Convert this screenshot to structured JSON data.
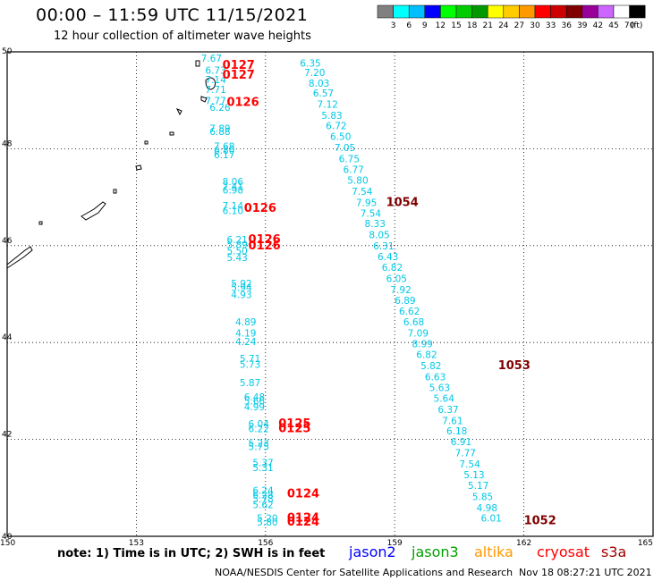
{
  "header": {
    "title": "00:00 – 11:59 UTC 11/15/2021",
    "subtitle": "12 hour collection of altimeter wave heights"
  },
  "footer": {
    "note": "note: 1) Time is in UTC; 2) SWH is in feet",
    "missions": [
      {
        "name": "jason2",
        "color": "#0000ff"
      },
      {
        "name": "jason3",
        "color": "#00a000"
      },
      {
        "name": "altika",
        "color": "#ff9900"
      },
      {
        "name": "cryosat",
        "color": "#ff0000"
      },
      {
        "name": "s3a",
        "color": "#a00000"
      }
    ],
    "credit": "NOAA/NESDIS Center for Satellite Applications and Research",
    "timestamp": "Nov 18 08:27:21 UTC 2021"
  },
  "chart_data": {
    "type": "scatter",
    "xlim": [
      150,
      165
    ],
    "ylim": [
      40,
      50
    ],
    "x_ticks": [
      "150",
      "153",
      "156",
      "159",
      "162",
      "165"
    ],
    "y_ticks": [
      "50",
      "48",
      "46",
      "44",
      "42",
      "40"
    ],
    "grid": true,
    "colorbar": {
      "unit": "(ft)",
      "labels": [
        "3",
        "6",
        "9",
        "12",
        "15",
        "18",
        "21",
        "24",
        "27",
        "30",
        "33",
        "36",
        "39",
        "42",
        "45",
        "70"
      ],
      "colors": [
        "#808080",
        "#00ffff",
        "#00bfff",
        "#0000ff",
        "#00ff00",
        "#00cc00",
        "#009900",
        "#ffff00",
        "#ffcc00",
        "#ff9900",
        "#ff0000",
        "#cc0000",
        "#800000",
        "#990099",
        "#cc66ff",
        "#ffffff",
        "#000000"
      ]
    },
    "series": [
      {
        "color": "#00c8e6",
        "points": [
          {
            "x": 154.5,
            "y": 49.8,
            "v": "7.67"
          },
          {
            "x": 154.6,
            "y": 49.55,
            "v": "6.73"
          },
          {
            "x": 154.6,
            "y": 49.35,
            "v": "7.14"
          },
          {
            "x": 154.6,
            "y": 49.15,
            "v": "7.71"
          },
          {
            "x": 154.6,
            "y": 48.92,
            "v": "7.77"
          },
          {
            "x": 154.7,
            "y": 48.78,
            "v": "6.26"
          },
          {
            "x": 154.7,
            "y": 48.35,
            "v": "7.89"
          },
          {
            "x": 154.7,
            "y": 48.28,
            "v": "6.88"
          },
          {
            "x": 154.8,
            "y": 47.98,
            "v": "7.68"
          },
          {
            "x": 154.8,
            "y": 47.9,
            "v": "6.80"
          },
          {
            "x": 154.8,
            "y": 47.8,
            "v": "6.17"
          },
          {
            "x": 155.0,
            "y": 47.25,
            "v": "8.06"
          },
          {
            "x": 155.0,
            "y": 47.15,
            "v": "7.41"
          },
          {
            "x": 155.0,
            "y": 47.08,
            "v": "6.98"
          },
          {
            "x": 155.0,
            "y": 46.75,
            "v": "7.14"
          },
          {
            "x": 155.0,
            "y": 46.65,
            "v": "6.10"
          },
          {
            "x": 155.1,
            "y": 46.05,
            "v": "6.21"
          },
          {
            "x": 155.1,
            "y": 45.95,
            "v": "5.89"
          },
          {
            "x": 155.1,
            "y": 45.82,
            "v": "5.50"
          },
          {
            "x": 155.1,
            "y": 45.68,
            "v": "5.43"
          },
          {
            "x": 155.2,
            "y": 45.15,
            "v": "5.92"
          },
          {
            "x": 155.2,
            "y": 45.06,
            "v": "5.94"
          },
          {
            "x": 155.2,
            "y": 44.92,
            "v": "4.93"
          },
          {
            "x": 155.3,
            "y": 44.35,
            "v": "4.89"
          },
          {
            "x": 155.3,
            "y": 44.12,
            "v": "4.19"
          },
          {
            "x": 155.3,
            "y": 43.95,
            "v": "4.24"
          },
          {
            "x": 155.4,
            "y": 43.6,
            "v": "5.71"
          },
          {
            "x": 155.4,
            "y": 43.48,
            "v": "5.73"
          },
          {
            "x": 155.4,
            "y": 43.1,
            "v": "5.87"
          },
          {
            "x": 155.5,
            "y": 42.8,
            "v": "6.48"
          },
          {
            "x": 155.5,
            "y": 42.72,
            "v": "5.66"
          },
          {
            "x": 155.5,
            "y": 42.6,
            "v": "4.99"
          },
          {
            "x": 155.6,
            "y": 42.25,
            "v": "6.04"
          },
          {
            "x": 155.6,
            "y": 42.15,
            "v": "6.22"
          },
          {
            "x": 155.6,
            "y": 41.85,
            "v": "5.23"
          },
          {
            "x": 155.6,
            "y": 41.78,
            "v": "5.75"
          },
          {
            "x": 155.7,
            "y": 41.45,
            "v": "5.37"
          },
          {
            "x": 155.7,
            "y": 41.35,
            "v": "5.31"
          },
          {
            "x": 155.7,
            "y": 40.88,
            "v": "6.24"
          },
          {
            "x": 155.7,
            "y": 40.78,
            "v": "6.28"
          },
          {
            "x": 155.7,
            "y": 40.7,
            "v": "5.78"
          },
          {
            "x": 155.7,
            "y": 40.58,
            "v": "5.62"
          },
          {
            "x": 155.8,
            "y": 40.3,
            "v": "5.20"
          },
          {
            "x": 155.8,
            "y": 40.22,
            "v": "5.80"
          },
          {
            "x": 156.8,
            "y": 49.7,
            "v": "6.35"
          },
          {
            "x": 156.9,
            "y": 49.5,
            "v": "7.20"
          },
          {
            "x": 157.0,
            "y": 49.28,
            "v": "8.03"
          },
          {
            "x": 157.1,
            "y": 49.08,
            "v": "6.57"
          },
          {
            "x": 157.2,
            "y": 48.85,
            "v": "7.12"
          },
          {
            "x": 157.3,
            "y": 48.62,
            "v": "5.83"
          },
          {
            "x": 157.4,
            "y": 48.4,
            "v": "6.72"
          },
          {
            "x": 157.5,
            "y": 48.18,
            "v": "6.50"
          },
          {
            "x": 157.6,
            "y": 47.95,
            "v": "7.05"
          },
          {
            "x": 157.7,
            "y": 47.72,
            "v": "6.75"
          },
          {
            "x": 157.8,
            "y": 47.5,
            "v": "6.77"
          },
          {
            "x": 157.9,
            "y": 47.28,
            "v": "5.80"
          },
          {
            "x": 158.0,
            "y": 47.05,
            "v": "7.54"
          },
          {
            "x": 158.1,
            "y": 46.82,
            "v": "7.95"
          },
          {
            "x": 158.2,
            "y": 46.6,
            "v": "7.54"
          },
          {
            "x": 158.3,
            "y": 46.38,
            "v": "8.33"
          },
          {
            "x": 158.4,
            "y": 46.15,
            "v": "8.05"
          },
          {
            "x": 158.5,
            "y": 45.92,
            "v": "6.31"
          },
          {
            "x": 158.6,
            "y": 45.7,
            "v": "6.43"
          },
          {
            "x": 158.7,
            "y": 45.48,
            "v": "6.82"
          },
          {
            "x": 158.8,
            "y": 45.25,
            "v": "6.05"
          },
          {
            "x": 158.9,
            "y": 45.02,
            "v": "7.92"
          },
          {
            "x": 159.0,
            "y": 44.8,
            "v": "6.89"
          },
          {
            "x": 159.1,
            "y": 44.58,
            "v": "6.62"
          },
          {
            "x": 159.2,
            "y": 44.35,
            "v": "6.68"
          },
          {
            "x": 159.3,
            "y": 44.12,
            "v": "7.09"
          },
          {
            "x": 159.4,
            "y": 43.9,
            "v": "8.99"
          },
          {
            "x": 159.5,
            "y": 43.68,
            "v": "6.82"
          },
          {
            "x": 159.6,
            "y": 43.45,
            "v": "5.82"
          },
          {
            "x": 159.7,
            "y": 43.22,
            "v": "6.63"
          },
          {
            "x": 159.8,
            "y": 43.0,
            "v": "5.63"
          },
          {
            "x": 159.9,
            "y": 42.78,
            "v": "5.64"
          },
          {
            "x": 160.0,
            "y": 42.55,
            "v": "6.37"
          },
          {
            "x": 160.1,
            "y": 42.32,
            "v": "7.61"
          },
          {
            "x": 160.2,
            "y": 42.1,
            "v": "6.18"
          },
          {
            "x": 160.3,
            "y": 41.88,
            "v": "6.91"
          },
          {
            "x": 160.4,
            "y": 41.65,
            "v": "7.77"
          },
          {
            "x": 160.5,
            "y": 41.42,
            "v": "7.54"
          },
          {
            "x": 160.6,
            "y": 41.2,
            "v": "5.13"
          },
          {
            "x": 160.7,
            "y": 40.98,
            "v": "5.17"
          },
          {
            "x": 160.8,
            "y": 40.75,
            "v": "5.85"
          },
          {
            "x": 160.9,
            "y": 40.52,
            "v": "4.98"
          },
          {
            "x": 161.0,
            "y": 40.3,
            "v": "6.01"
          }
        ]
      },
      {
        "color": "#ff0000",
        "points": [
          {
            "x": 155.0,
            "y": 49.65,
            "v": "0127"
          },
          {
            "x": 155.0,
            "y": 49.45,
            "v": "0127"
          },
          {
            "x": 155.1,
            "y": 48.88,
            "v": "0126"
          },
          {
            "x": 155.5,
            "y": 46.7,
            "v": "0126"
          },
          {
            "x": 155.6,
            "y": 46.05,
            "v": "0126"
          },
          {
            "x": 155.6,
            "y": 45.92,
            "v": "0126"
          },
          {
            "x": 156.3,
            "y": 42.25,
            "v": "0125"
          },
          {
            "x": 156.3,
            "y": 42.15,
            "v": "0125"
          },
          {
            "x": 156.5,
            "y": 40.8,
            "v": "0124"
          },
          {
            "x": 156.5,
            "y": 40.3,
            "v": "0124"
          },
          {
            "x": 156.5,
            "y": 40.22,
            "v": "0124"
          }
        ]
      },
      {
        "color": "#800000",
        "points": [
          {
            "x": 158.8,
            "y": 46.82,
            "v": "1054"
          },
          {
            "x": 161.4,
            "y": 43.45,
            "v": "1053"
          },
          {
            "x": 162.0,
            "y": 40.25,
            "v": "1052"
          }
        ]
      }
    ]
  }
}
